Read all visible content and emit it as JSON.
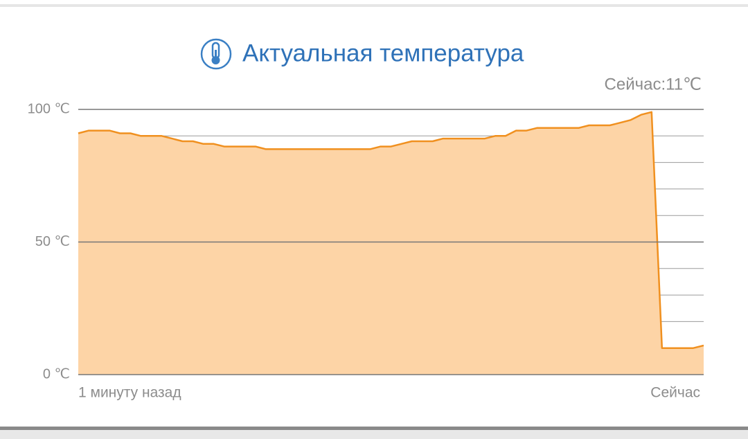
{
  "chart_data": {
    "type": "area",
    "title": "Актуальная температура",
    "current_label": "Сейчас:11℃",
    "categories": [
      "1 минуту назад",
      null,
      null,
      null,
      null,
      null,
      null,
      null,
      null,
      null,
      null,
      null,
      null,
      null,
      null,
      null,
      null,
      null,
      null,
      null,
      null,
      null,
      null,
      null,
      null,
      null,
      null,
      null,
      null,
      null,
      null,
      null,
      null,
      null,
      null,
      null,
      null,
      null,
      null,
      null,
      null,
      null,
      null,
      null,
      null,
      null,
      null,
      null,
      null,
      null,
      null,
      null,
      null,
      null,
      null,
      null,
      null,
      null,
      null,
      null,
      "Сейчас"
    ],
    "values": [
      91,
      92,
      92,
      92,
      91,
      91,
      90,
      90,
      90,
      89,
      88,
      88,
      87,
      87,
      86,
      86,
      86,
      86,
      85,
      85,
      85,
      85,
      85,
      85,
      85,
      85,
      85,
      85,
      85,
      86,
      86,
      87,
      88,
      88,
      88,
      89,
      89,
      89,
      89,
      89,
      90,
      90,
      92,
      92,
      93,
      93,
      93,
      93,
      93,
      94,
      94,
      94,
      95,
      96,
      98,
      99,
      10,
      10,
      10,
      10,
      11
    ],
    "color": "#f0901f",
    "fill": "#fdd4a6",
    "ylim": [
      0,
      100
    ],
    "yticks": [
      {
        "value": 0,
        "label": "0 ℃"
      },
      {
        "value": 50,
        "label": "50 ℃"
      },
      {
        "value": 100,
        "label": "100 ℃"
      }
    ],
    "minor_yticks": [
      10,
      20,
      30,
      40,
      60,
      70,
      80,
      90
    ],
    "grid": true
  }
}
